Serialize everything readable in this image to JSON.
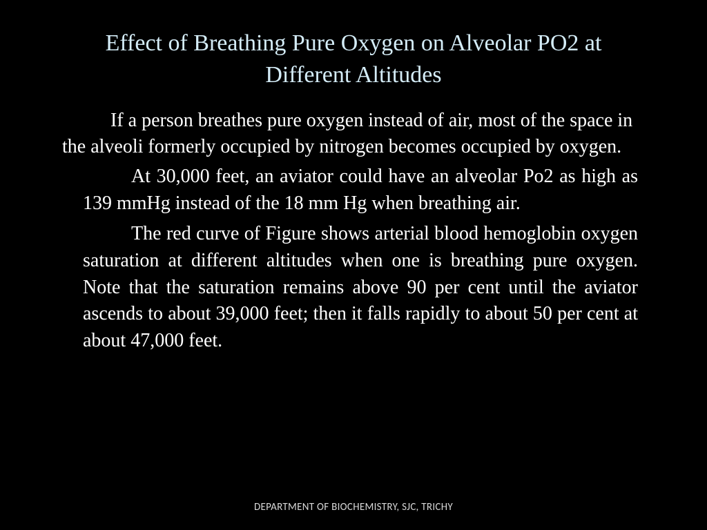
{
  "slide": {
    "title": "Effect of Breathing Pure Oxygen on Alveolar PO2 at Different Altitudes",
    "paragraph1": "If a person breathes pure oxygen instead of air, most of the space in the alveoli formerly occupied by nitrogen becomes occupied by oxygen.",
    "paragraph2": "At 30,000 feet, an aviator could have an alveolar Po2 as high as 139 mmHg instead of the 18 mm Hg when breathing air.",
    "paragraph3": "The red curve of Figure shows arterial blood hemoglobin oxygen saturation at different altitudes when one is breathing pure oxygen. Note that the saturation remains above 90 per cent until the aviator ascends to about 39,000 feet; then it falls rapidly to about 50 per cent at about 47,000 feet.",
    "footer": "DEPARTMENT OF BIOCHEMISTRY, SJC, TRICHY"
  },
  "style": {
    "background_color": "#000000",
    "title_color": "#d4ecf7",
    "body_color": "#ffffff",
    "footer_color": "#d8d8d8",
    "title_fontsize": 34,
    "body_fontsize": 28,
    "footer_fontsize": 15,
    "title_font": "Garamond serif",
    "footer_font": "Calibri sans-serif"
  }
}
